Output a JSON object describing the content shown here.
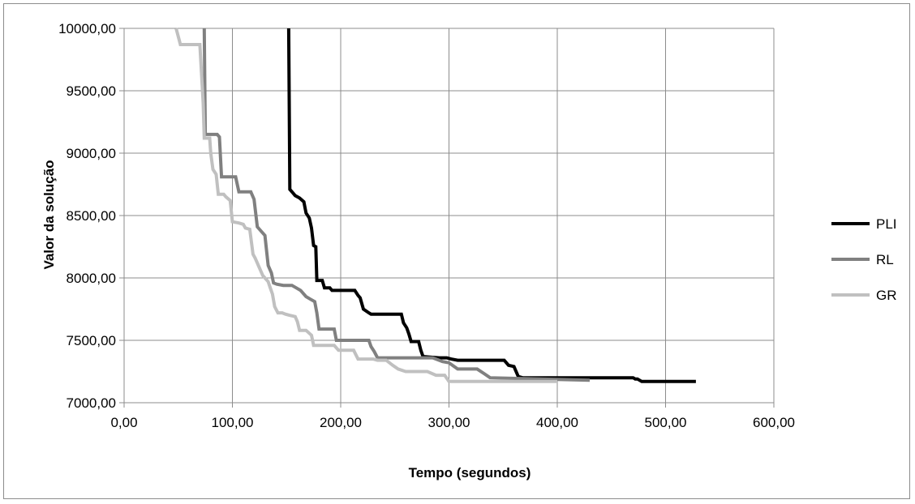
{
  "chart_data": {
    "type": "line",
    "title": "",
    "xlabel": "Tempo  (segundos)",
    "ylabel": "Valor da solução",
    "xlim": [
      0,
      600
    ],
    "ylim": [
      7000,
      10000
    ],
    "x_ticks": [
      0,
      100,
      200,
      300,
      400,
      500,
      600
    ],
    "x_tick_labels": [
      "0,00",
      "100,00",
      "200,00",
      "300,00",
      "400,00",
      "500,00",
      "600,00"
    ],
    "y_ticks": [
      7000,
      7500,
      8000,
      8500,
      9000,
      9500,
      10000
    ],
    "y_tick_labels": [
      "7000,00",
      "7500,00",
      "8000,00",
      "8500,00",
      "9000,00",
      "9500,00",
      "10000,00"
    ],
    "grid": true,
    "legend_position": "right",
    "series": [
      {
        "name": "PLI",
        "color": "#000000",
        "points": [
          [
            152,
            10000
          ],
          [
            153,
            8710
          ],
          [
            156,
            8680
          ],
          [
            158,
            8660
          ],
          [
            162,
            8640
          ],
          [
            166,
            8610
          ],
          [
            168,
            8520
          ],
          [
            171,
            8480
          ],
          [
            173,
            8400
          ],
          [
            175,
            8260
          ],
          [
            177,
            8250
          ],
          [
            178,
            7980
          ],
          [
            183,
            7980
          ],
          [
            185,
            7920
          ],
          [
            190,
            7920
          ],
          [
            192,
            7900
          ],
          [
            213,
            7900
          ],
          [
            216,
            7860
          ],
          [
            218,
            7840
          ],
          [
            221,
            7750
          ],
          [
            226,
            7720
          ],
          [
            228,
            7710
          ],
          [
            256,
            7710
          ],
          [
            258,
            7640
          ],
          [
            261,
            7600
          ],
          [
            263,
            7550
          ],
          [
            265,
            7490
          ],
          [
            272,
            7490
          ],
          [
            274,
            7420
          ],
          [
            276,
            7370
          ],
          [
            291,
            7360
          ],
          [
            298,
            7360
          ],
          [
            302,
            7350
          ],
          [
            308,
            7340
          ],
          [
            351,
            7340
          ],
          [
            355,
            7300
          ],
          [
            360,
            7290
          ],
          [
            364,
            7210
          ],
          [
            368,
            7200
          ],
          [
            470,
            7200
          ],
          [
            472,
            7190
          ],
          [
            474,
            7190
          ],
          [
            478,
            7170
          ],
          [
            528,
            7170
          ]
        ]
      },
      {
        "name": "RL",
        "color": "#808080",
        "points": [
          [
            74,
            10000
          ],
          [
            75,
            9150
          ],
          [
            86,
            9150
          ],
          [
            88,
            9130
          ],
          [
            90,
            8810
          ],
          [
            103,
            8810
          ],
          [
            106,
            8690
          ],
          [
            117,
            8690
          ],
          [
            120,
            8630
          ],
          [
            123,
            8410
          ],
          [
            126,
            8380
          ],
          [
            130,
            8340
          ],
          [
            133,
            8100
          ],
          [
            136,
            8040
          ],
          [
            138,
            7960
          ],
          [
            141,
            7950
          ],
          [
            147,
            7940
          ],
          [
            155,
            7940
          ],
          [
            159,
            7920
          ],
          [
            163,
            7900
          ],
          [
            168,
            7850
          ],
          [
            172,
            7830
          ],
          [
            176,
            7810
          ],
          [
            178,
            7720
          ],
          [
            180,
            7590
          ],
          [
            194,
            7590
          ],
          [
            196,
            7500
          ],
          [
            226,
            7500
          ],
          [
            228,
            7450
          ],
          [
            231,
            7410
          ],
          [
            234,
            7360
          ],
          [
            285,
            7360
          ],
          [
            288,
            7350
          ],
          [
            294,
            7330
          ],
          [
            300,
            7320
          ],
          [
            308,
            7270
          ],
          [
            326,
            7270
          ],
          [
            333,
            7230
          ],
          [
            338,
            7200
          ],
          [
            430,
            7180
          ]
        ]
      },
      {
        "name": "GR",
        "color": "#c0c0c0",
        "points": [
          [
            48,
            10000
          ],
          [
            52,
            9870
          ],
          [
            70,
            9870
          ],
          [
            73,
            9400
          ],
          [
            74,
            9120
          ],
          [
            79,
            9120
          ],
          [
            80,
            9000
          ],
          [
            82,
            8870
          ],
          [
            85,
            8830
          ],
          [
            87,
            8670
          ],
          [
            92,
            8670
          ],
          [
            94,
            8650
          ],
          [
            98,
            8620
          ],
          [
            100,
            8450
          ],
          [
            106,
            8440
          ],
          [
            110,
            8430
          ],
          [
            112,
            8400
          ],
          [
            116,
            8390
          ],
          [
            119,
            8190
          ],
          [
            121,
            8160
          ],
          [
            124,
            8100
          ],
          [
            128,
            8020
          ],
          [
            130,
            8000
          ],
          [
            133,
            7970
          ],
          [
            135,
            7920
          ],
          [
            137,
            7870
          ],
          [
            139,
            7770
          ],
          [
            142,
            7720
          ],
          [
            146,
            7720
          ],
          [
            149,
            7710
          ],
          [
            153,
            7700
          ],
          [
            158,
            7690
          ],
          [
            160,
            7650
          ],
          [
            162,
            7580
          ],
          [
            168,
            7580
          ],
          [
            173,
            7540
          ],
          [
            175,
            7460
          ],
          [
            194,
            7460
          ],
          [
            198,
            7420
          ],
          [
            212,
            7420
          ],
          [
            216,
            7350
          ],
          [
            230,
            7350
          ],
          [
            234,
            7340
          ],
          [
            242,
            7340
          ],
          [
            248,
            7300
          ],
          [
            253,
            7270
          ],
          [
            260,
            7250
          ],
          [
            280,
            7250
          ],
          [
            288,
            7220
          ],
          [
            296,
            7220
          ],
          [
            300,
            7170
          ],
          [
            400,
            7170
          ]
        ]
      }
    ]
  }
}
